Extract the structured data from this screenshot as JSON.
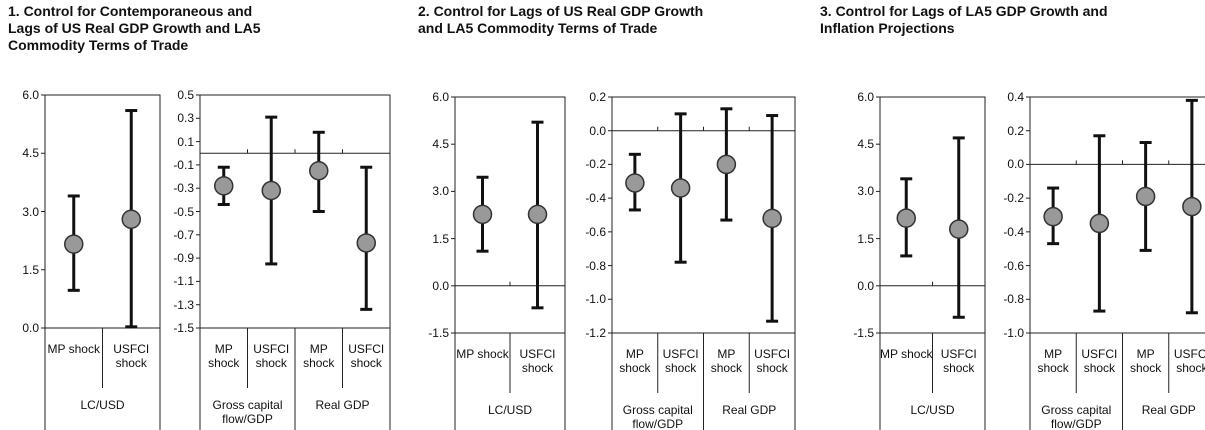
{
  "chart_data": [
    {
      "type": "errorbar",
      "title": [
        "1.  Control for Contemporaneous and",
        "Lags of US Real GDP Growth and LA5",
        "Commodity Terms of Trade"
      ],
      "categories": [
        "MP shock",
        "USFCI shock"
      ],
      "groups": [
        "LC/USD"
      ],
      "values": [
        2.16,
        2.8
      ],
      "low": [
        0.97,
        0.03
      ],
      "high": [
        3.4,
        5.6
      ],
      "ylim": [
        0,
        6
      ],
      "yticks": [
        {
          "value": 0,
          "label": "0.0"
        },
        1.5,
        {
          "value": 3,
          "label": "3.0"
        },
        4.5,
        {
          "value": 6,
          "label": "6.0"
        }
      ],
      "color": "#999999"
    },
    {
      "type": "errorbar",
      "categories": [
        "MP shock",
        "USFCI shock",
        "MP shock",
        "USFCI shock"
      ],
      "groups": [
        "Gross capital flow/GDP",
        "Real GDP"
      ],
      "values": [
        -0.28,
        -0.32,
        -0.15,
        -0.77
      ],
      "low": [
        -0.44,
        -0.95,
        -0.5,
        -1.34
      ],
      "high": [
        -0.12,
        0.31,
        0.18,
        -0.12
      ],
      "ylim": [
        -1.5,
        0.5
      ],
      "yticks": [
        -1.5,
        -1.3,
        -1.1,
        -0.9,
        -0.7,
        -0.5,
        -0.3,
        -0.1,
        0.1,
        0.3,
        0.5
      ],
      "color": "#999999"
    },
    {
      "type": "errorbar",
      "title": [
        "2.  Control for Lags of US Real GDP Growth",
        "and LA5 Commodity Terms of Trade"
      ],
      "categories": [
        "MP shock",
        "USFCI shock"
      ],
      "groups": [
        "LC/USD"
      ],
      "values": [
        2.27,
        2.27
      ],
      "low": [
        1.1,
        -0.7
      ],
      "high": [
        3.45,
        5.2
      ],
      "ylim": [
        -1.5,
        6
      ],
      "yticks": [
        -1.5,
        {
          "value": 0,
          "label": "0.0"
        },
        1.5,
        {
          "value": 3,
          "label": "3.0"
        },
        4.5,
        {
          "value": 6,
          "label": "6.0"
        }
      ],
      "color": "#999999"
    },
    {
      "type": "errorbar",
      "categories": [
        "MP shock",
        "USFCI shock",
        "MP shock",
        "USFCI shock"
      ],
      "groups": [
        "Gross capital flow/GDP",
        "Real GDP"
      ],
      "values": [
        -0.31,
        -0.34,
        -0.2,
        -0.52
      ],
      "low": [
        -0.47,
        -0.78,
        -0.53,
        -1.13
      ],
      "high": [
        -0.14,
        0.1,
        0.13,
        0.09
      ],
      "ylim": [
        -1.2,
        0.2
      ],
      "yticks": [
        -1.2,
        {
          "value": -1,
          "label": "-1.0"
        },
        -0.8,
        -0.6,
        -0.4,
        -0.2,
        {
          "value": 0,
          "label": "0.0"
        },
        0.2
      ],
      "color": "#999999"
    },
    {
      "type": "errorbar",
      "title": [
        "3.  Control for Lags of LA5 GDP Growth and",
        "Inflation Projections"
      ],
      "categories": [
        "MP shock",
        "USFCI shock"
      ],
      "groups": [
        "LC/USD"
      ],
      "values": [
        2.15,
        1.8
      ],
      "low": [
        0.95,
        -1.0
      ],
      "high": [
        3.4,
        4.7
      ],
      "ylim": [
        -1.5,
        6
      ],
      "yticks": [
        -1.5,
        {
          "value": 0,
          "label": "0.0"
        },
        1.5,
        {
          "value": 3,
          "label": "3.0"
        },
        4.5,
        {
          "value": 6,
          "label": "6.0"
        }
      ],
      "color": "#999999"
    },
    {
      "type": "errorbar",
      "categories": [
        "MP shock",
        "USFCI shock",
        "MP shock",
        "USFCI shock"
      ],
      "groups": [
        "Gross capital flow/GDP",
        "Real GDP"
      ],
      "values": [
        -0.31,
        -0.35,
        -0.19,
        -0.25
      ],
      "low": [
        -0.47,
        -0.87,
        -0.51,
        -0.88
      ],
      "high": [
        -0.14,
        0.17,
        0.13,
        0.38
      ],
      "ylim": [
        -1,
        0.4
      ],
      "yticks": [
        {
          "value": -1,
          "label": "-1.0"
        },
        -0.8,
        -0.6,
        -0.4,
        -0.2,
        {
          "value": 0,
          "label": "0.0"
        },
        0.2,
        0.4
      ],
      "color": "#999999"
    }
  ]
}
